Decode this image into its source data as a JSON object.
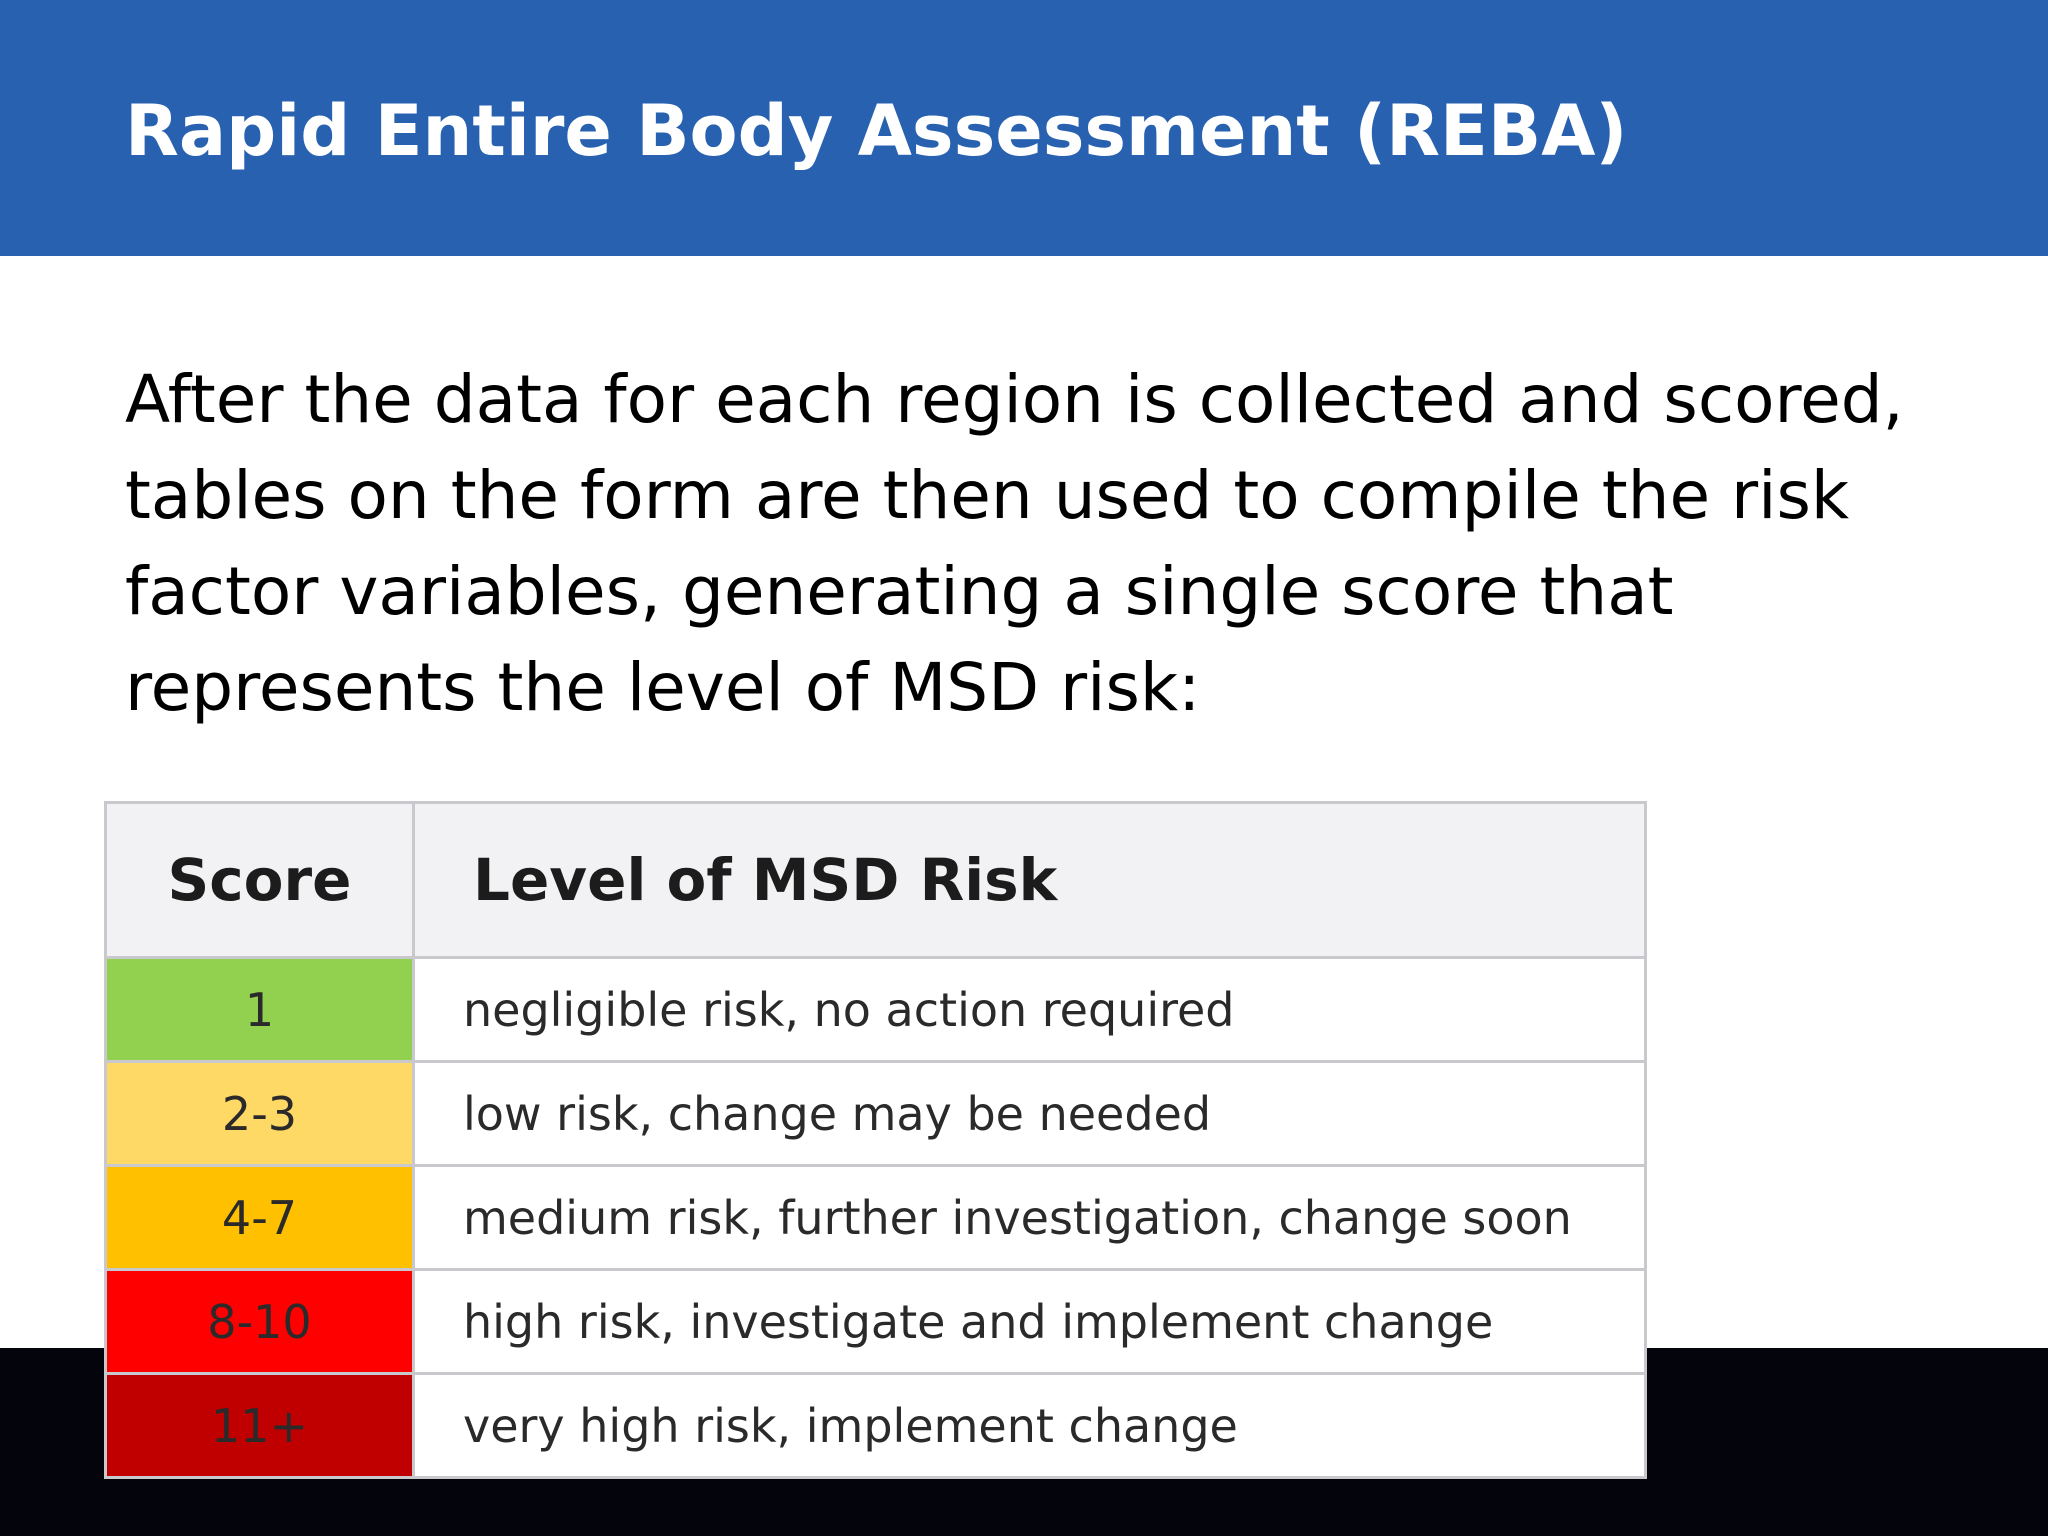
{
  "slide": {
    "title": "Rapid Entire Body Assessment (REBA)",
    "body": "After the data for each region is collected and scored, tables on the form are then used to compile the risk factor variables, generating a single score that represents the level of MSD risk:"
  },
  "table": {
    "headers": {
      "score": "Score",
      "level": "Level of MSD Risk"
    },
    "rows": [
      {
        "score": "1",
        "level": "negligible risk, no action required",
        "color": "#92d050"
      },
      {
        "score": "2-3",
        "level": "low risk, change may be needed",
        "color": "#ffd966"
      },
      {
        "score": "4-7",
        "level": "medium risk, further investigation, change soon",
        "color": "#ffc000"
      },
      {
        "score": "8-10",
        "level": "high risk, investigate and implement change",
        "color": "#ff0000"
      },
      {
        "score": "11+",
        "level": "very high risk, implement change",
        "color": "#c00000"
      }
    ]
  },
  "colors": {
    "title_bar": "#2761b0",
    "footer_band": "#03040c"
  }
}
